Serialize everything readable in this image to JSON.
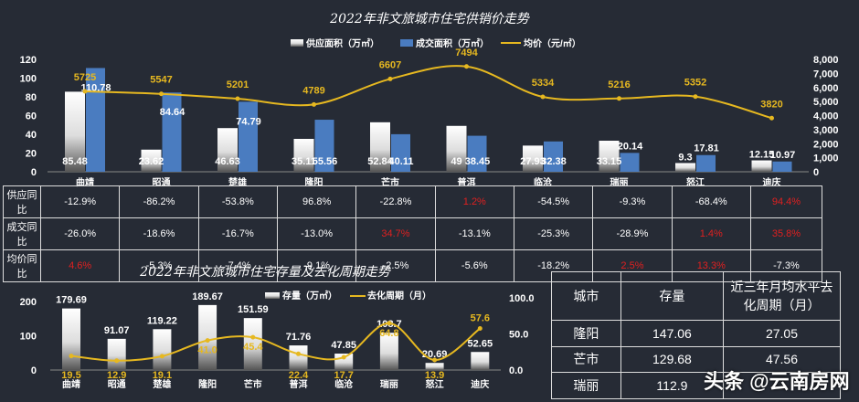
{
  "chart_data": [
    {
      "type": "bar",
      "title": "2022年非文旅城市住宅供销价走势",
      "categories": [
        "曲靖",
        "昭通",
        "楚雄",
        "隆阳",
        "芒市",
        "普洱",
        "临沧",
        "瑞丽",
        "怒江",
        "迪庆"
      ],
      "series": [
        {
          "name": "供应面积（万㎡）",
          "values": [
            85.48,
            23.62,
            46.63,
            35.11,
            52.84,
            49,
            27.93,
            33.15,
            9.3,
            12.15
          ]
        },
        {
          "name": "成交面积（万㎡）",
          "values": [
            110.78,
            84.64,
            74.79,
            55.56,
            40.11,
            38.45,
            32.38,
            20.14,
            17.81,
            10.97
          ]
        },
        {
          "name": "均价（元/㎡）",
          "type": "line",
          "axis": "right",
          "values": [
            5725,
            5547,
            5201,
            4789,
            6607,
            7494,
            5334,
            5216,
            5352,
            3820
          ]
        }
      ],
      "ylim": [
        0,
        120
      ],
      "yticks": [
        "0",
        "20",
        "40",
        "60",
        "80",
        "100",
        "120"
      ],
      "y2lim": [
        0,
        8000
      ],
      "y2ticks": [
        "0",
        "1,000",
        "2,000",
        "3,000",
        "4,000",
        "5,000",
        "6,000",
        "7,000",
        "8,000"
      ],
      "legend": "top"
    },
    {
      "type": "bar",
      "title": "2022年非文旅城市住宅存量及去化周期走势",
      "categories": [
        "曲靖",
        "昭通",
        "楚雄",
        "隆阳",
        "芒市",
        "普洱",
        "临沧",
        "瑞丽",
        "怒江",
        "迪庆"
      ],
      "series": [
        {
          "name": "存量（万㎡）",
          "values": [
            179.69,
            91.07,
            119.22,
            189.67,
            151.59,
            71.76,
            47.85,
            108.7,
            20.69,
            52.65
          ]
        },
        {
          "name": "去化周期（月）",
          "type": "line",
          "axis": "right",
          "values": [
            19.5,
            12.9,
            19.1,
            41.0,
            45.4,
            22.4,
            17.7,
            64.8,
            13.9,
            57.6
          ]
        }
      ],
      "ylim": [
        0,
        200
      ],
      "yticks": [
        "0",
        "100",
        "200"
      ],
      "y2lim": [
        0,
        100
      ],
      "y2ticks": [
        "0.0",
        "50.0",
        "100.0"
      ],
      "legend": "top"
    }
  ],
  "yoy_table": {
    "rows": [
      {
        "label": "供应同比",
        "values": [
          "-12.9%",
          "-86.2%",
          "-53.8%",
          "96.8%",
          "-22.8%",
          "1.2%",
          "-54.5%",
          "-9.3%",
          "-68.4%",
          "94.4%"
        ]
      },
      {
        "label": "成交同比",
        "values": [
          "-26.0%",
          "-18.6%",
          "-16.7%",
          "-13.0%",
          "34.7%",
          "-13.1%",
          "-25.3%",
          "-28.9%",
          "1.4%",
          "35.8%"
        ]
      },
      {
        "label": "均价同比",
        "values": [
          "4.6%",
          "-5.3%",
          "-7.4%",
          "-9.1%",
          "-2.5%",
          "-5.6%",
          "-18.2%",
          "2.5%",
          "13.3%",
          "-7.3%"
        ]
      }
    ]
  },
  "stock_table": {
    "headers": [
      "城市",
      "存量",
      "近三年月均水平去化周期（月）"
    ],
    "rows": [
      [
        "隆阳",
        "147.06",
        "27.05"
      ],
      [
        "芒市",
        "129.68",
        "47.56"
      ],
      [
        "瑞丽",
        "112.9",
        ""
      ]
    ]
  },
  "watermark": "头条 @云南房网",
  "colors": {
    "bg": "#262b35",
    "blue": "#4a7cc0",
    "gold": "#e6b820",
    "red": "#e02020"
  }
}
